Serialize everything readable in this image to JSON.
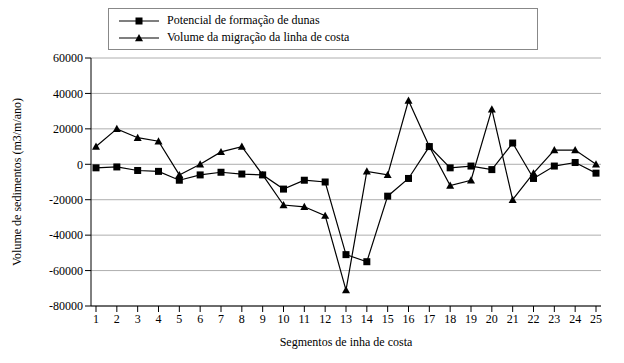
{
  "chart_data": {
    "type": "line",
    "x_label": "Segmentos de inha de costa",
    "y_label": "Volume de sedimentos (m3/m/ano)",
    "categories": [
      "1",
      "2",
      "3",
      "4",
      "5",
      "6",
      "7",
      "8",
      "9",
      "10",
      "11",
      "12",
      "13",
      "14",
      "15",
      "16",
      "17",
      "18",
      "19",
      "20",
      "21",
      "22",
      "23",
      "24",
      "25"
    ],
    "series": [
      {
        "name": "Potencial de formação de dunas",
        "color": "#000000",
        "marker": "square",
        "values": [
          -2000,
          -1500,
          -3500,
          -4000,
          -9000,
          -6000,
          -4500,
          -5500,
          -6000,
          -14000,
          -9000,
          -10000,
          -51000,
          -55000,
          -18000,
          -8000,
          10000,
          -2000,
          -1000,
          -3000,
          12000,
          -8000,
          -1000,
          1000,
          -5000
        ]
      },
      {
        "name": "Volume da migração da linha de costa",
        "color": "#000000",
        "marker": "triangle",
        "values": [
          10000,
          20000,
          15000,
          13000,
          -6000,
          0,
          7000,
          10000,
          -6000,
          -23000,
          -24000,
          -29000,
          -71000,
          -4000,
          -6000,
          36000,
          10000,
          -12000,
          -9000,
          31000,
          -20000,
          -5000,
          8000,
          8000,
          0
        ]
      }
    ],
    "ylim": [
      -80000,
      60000
    ],
    "yticks": [
      -80000,
      -60000,
      -40000,
      -20000,
      0,
      20000,
      40000,
      60000
    ],
    "grid": true,
    "legend": "top"
  }
}
